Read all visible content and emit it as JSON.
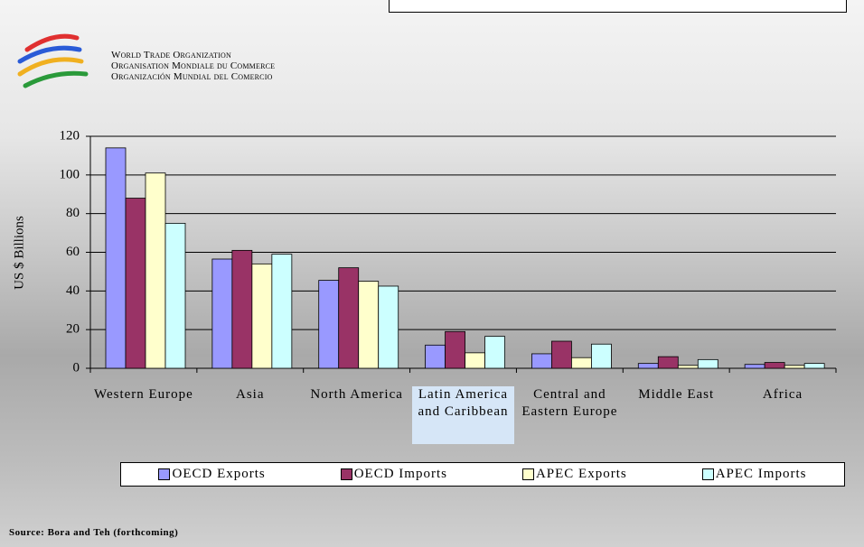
{
  "header": {
    "lines": [
      "World Trade Organization",
      "Organisation Mondiale du Commerce",
      "Organización Mundial del Comercio"
    ]
  },
  "chart_data": {
    "type": "bar",
    "y_label": "US $ Billions",
    "categories": [
      "Western Europe",
      "Asia",
      "North America",
      "Latin America and Caribbean",
      "Central and Eastern Europe",
      "Middle East",
      "Africa"
    ],
    "series": [
      {
        "name": "OECD Exports",
        "color": "#9999ff",
        "values": [
          114,
          56.5,
          45.5,
          12,
          7.5,
          2.5,
          2
        ]
      },
      {
        "name": "OECD Imports",
        "color": "#993366",
        "values": [
          88,
          61,
          52,
          19,
          14,
          6,
          3
        ]
      },
      {
        "name": "APEC Exports",
        "color": "#ffffcc",
        "values": [
          101,
          54,
          45,
          8,
          5.5,
          1.5,
          1.5
        ]
      },
      {
        "name": "APEC Imports",
        "color": "#ccffff",
        "values": [
          75,
          59,
          42.5,
          16.5,
          12.5,
          4.5,
          2.5
        ]
      }
    ],
    "ylim": [
      0,
      120
    ],
    "yticks": [
      0,
      20,
      40,
      60,
      80,
      100,
      120
    ],
    "grid": true,
    "source": "Source: Bora and Teh (forthcoming)"
  }
}
